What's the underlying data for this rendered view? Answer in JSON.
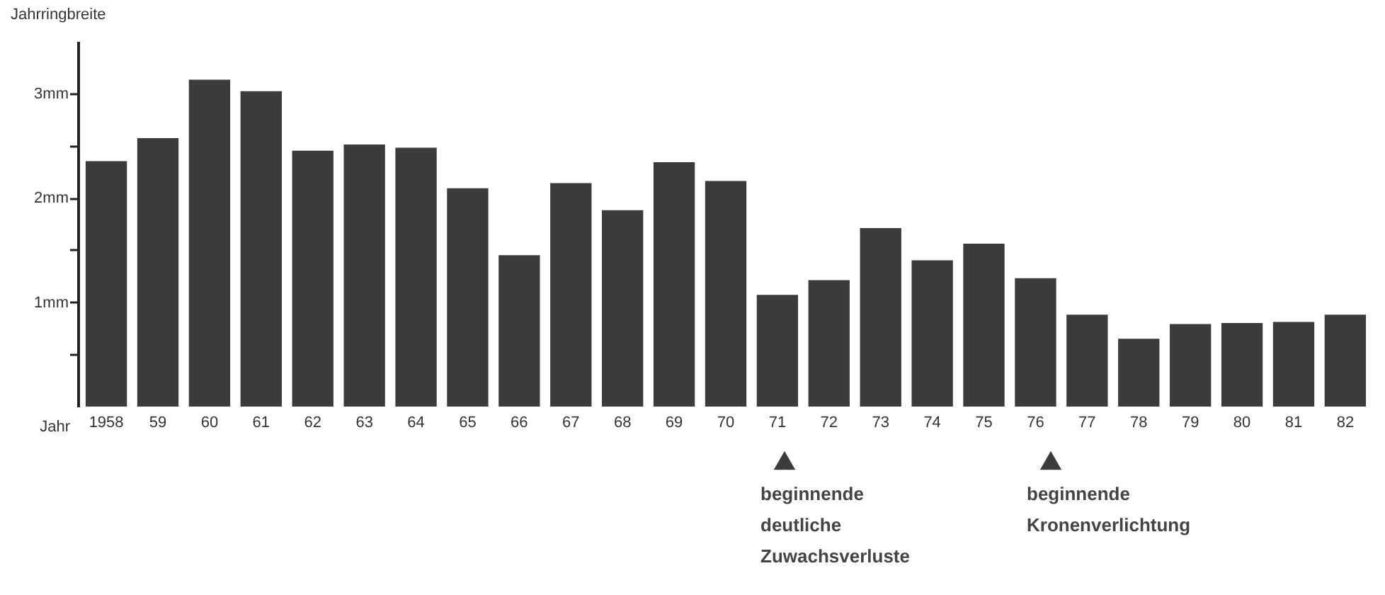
{
  "chart_data": {
    "type": "bar",
    "xlabel": "Jahr",
    "ylabel": "Jahrringbreite",
    "categories": [
      "1958",
      "59",
      "60",
      "61",
      "62",
      "63",
      "64",
      "65",
      "66",
      "67",
      "68",
      "69",
      "70",
      "71",
      "72",
      "73",
      "74",
      "75",
      "76",
      "77",
      "78",
      "79",
      "80",
      "81",
      "82"
    ],
    "values": [
      2.35,
      2.57,
      3.13,
      3.02,
      2.45,
      2.51,
      2.48,
      2.09,
      1.45,
      2.14,
      1.88,
      2.34,
      2.16,
      1.07,
      1.21,
      1.71,
      1.4,
      1.56,
      1.23,
      0.88,
      0.65,
      0.79,
      0.8,
      0.81,
      0.88
    ],
    "color": "#3b3b3b",
    "ylim": [
      0,
      3.5
    ],
    "yticks": [
      {
        "value": 0.5,
        "label": null
      },
      {
        "value": 1,
        "label": "1mm"
      },
      {
        "value": 1.5,
        "label": null
      },
      {
        "value": 2,
        "label": "2mm"
      },
      {
        "value": 2.5,
        "label": null
      },
      {
        "value": 3,
        "label": "3mm"
      }
    ],
    "annotations": [
      "beginnende deutliche Zuwachsverluste",
      "beginnende Kronenverlichtung"
    ]
  }
}
